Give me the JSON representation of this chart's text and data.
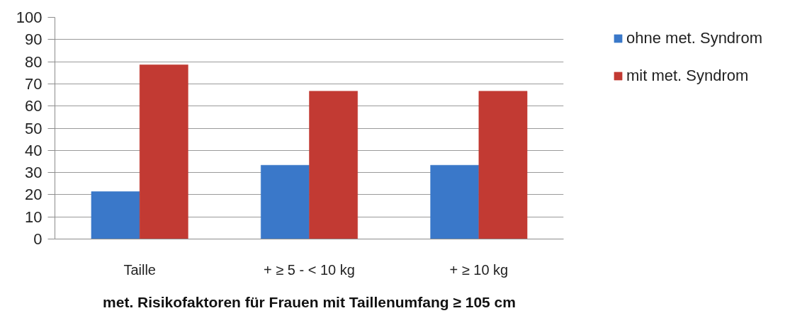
{
  "chart_data": {
    "type": "bar",
    "xlabel": "met. Risikofaktoren für Frauen mit Taillenumfang ≥ 105 cm",
    "categories": [
      "Taille",
      "+ ≥ 5 - < 10 kg",
      "+ ≥ 10 kg"
    ],
    "series": [
      {
        "name": "ohne met. Syndrom",
        "color": "#3a78c9",
        "values": [
          21.4,
          33.3,
          33.3
        ]
      },
      {
        "name": "mit met. Syndrom",
        "color": "#c23a33",
        "values": [
          78.6,
          66.7,
          66.7
        ]
      }
    ],
    "ylim": [
      0,
      100
    ],
    "yticks": [
      0,
      10,
      20,
      30,
      40,
      50,
      60,
      70,
      80,
      90,
      100
    ],
    "grid": "y",
    "legend": "top right"
  }
}
